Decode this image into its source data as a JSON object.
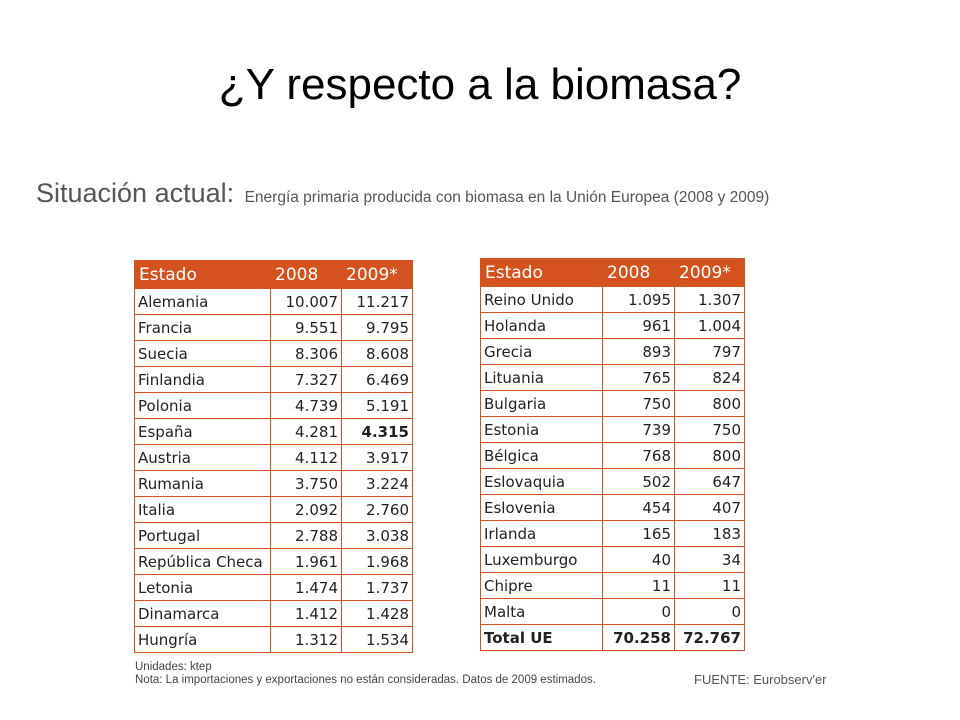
{
  "slide": {
    "title": "¿Y respecto a la biomasa?",
    "subtitle_main": "Situación actual:",
    "subtitle_detail": "Energía primaria producida con biomasa en la Unión Europea (2008 y 2009)"
  },
  "table_left": {
    "headers": [
      "Estado",
      "2008",
      "2009*"
    ],
    "rows": [
      [
        "Alemania",
        "10.007",
        "11.217"
      ],
      [
        "Francia",
        "9.551",
        "9.795"
      ],
      [
        "Suecia",
        "8.306",
        "8.608"
      ],
      [
        "Finlandia",
        "7.327",
        "6.469"
      ],
      [
        "Polonia",
        "4.739",
        "5.191"
      ],
      [
        "España",
        "4.281",
        "4.315"
      ],
      [
        "Austria",
        "4.112",
        "3.917"
      ],
      [
        "Rumania",
        "3.750",
        "3.224"
      ],
      [
        "Italia",
        "2.092",
        "2.760"
      ],
      [
        "Portugal",
        "2.788",
        "3.038"
      ],
      [
        "República Checa",
        "1.961",
        "1.968"
      ],
      [
        "Letonia",
        "1.474",
        "1.737"
      ],
      [
        "Dinamarca",
        "1.412",
        "1.428"
      ],
      [
        "Hungría",
        "1.312",
        "1.534"
      ]
    ]
  },
  "table_right": {
    "headers": [
      "Estado",
      "2008",
      "2009*"
    ],
    "rows": [
      [
        "Reino Unido",
        "1.095",
        "1.307"
      ],
      [
        "Holanda",
        "961",
        "1.004"
      ],
      [
        "Grecia",
        "893",
        "797"
      ],
      [
        "Lituania",
        "765",
        "824"
      ],
      [
        "Bulgaria",
        "750",
        "800"
      ],
      [
        "Estonia",
        "739",
        "750"
      ],
      [
        "Bélgica",
        "768",
        "800"
      ],
      [
        "Eslovaquia",
        "502",
        "647"
      ],
      [
        "Eslovenia",
        "454",
        "407"
      ],
      [
        "Irlanda",
        "165",
        "183"
      ],
      [
        "Luxemburgo",
        "40",
        "34"
      ],
      [
        "Chipre",
        "11",
        "11"
      ],
      [
        "Malta",
        "0",
        "0"
      ],
      [
        "Total UE",
        "70.258",
        "72.767"
      ]
    ]
  },
  "notes": {
    "units": "Unidades: ktep",
    "note": "Nota: La importaciones y exportaciones no están consideradas. Datos de 2009 estimados."
  },
  "source": "FUENTE: Eurobserv'er"
}
